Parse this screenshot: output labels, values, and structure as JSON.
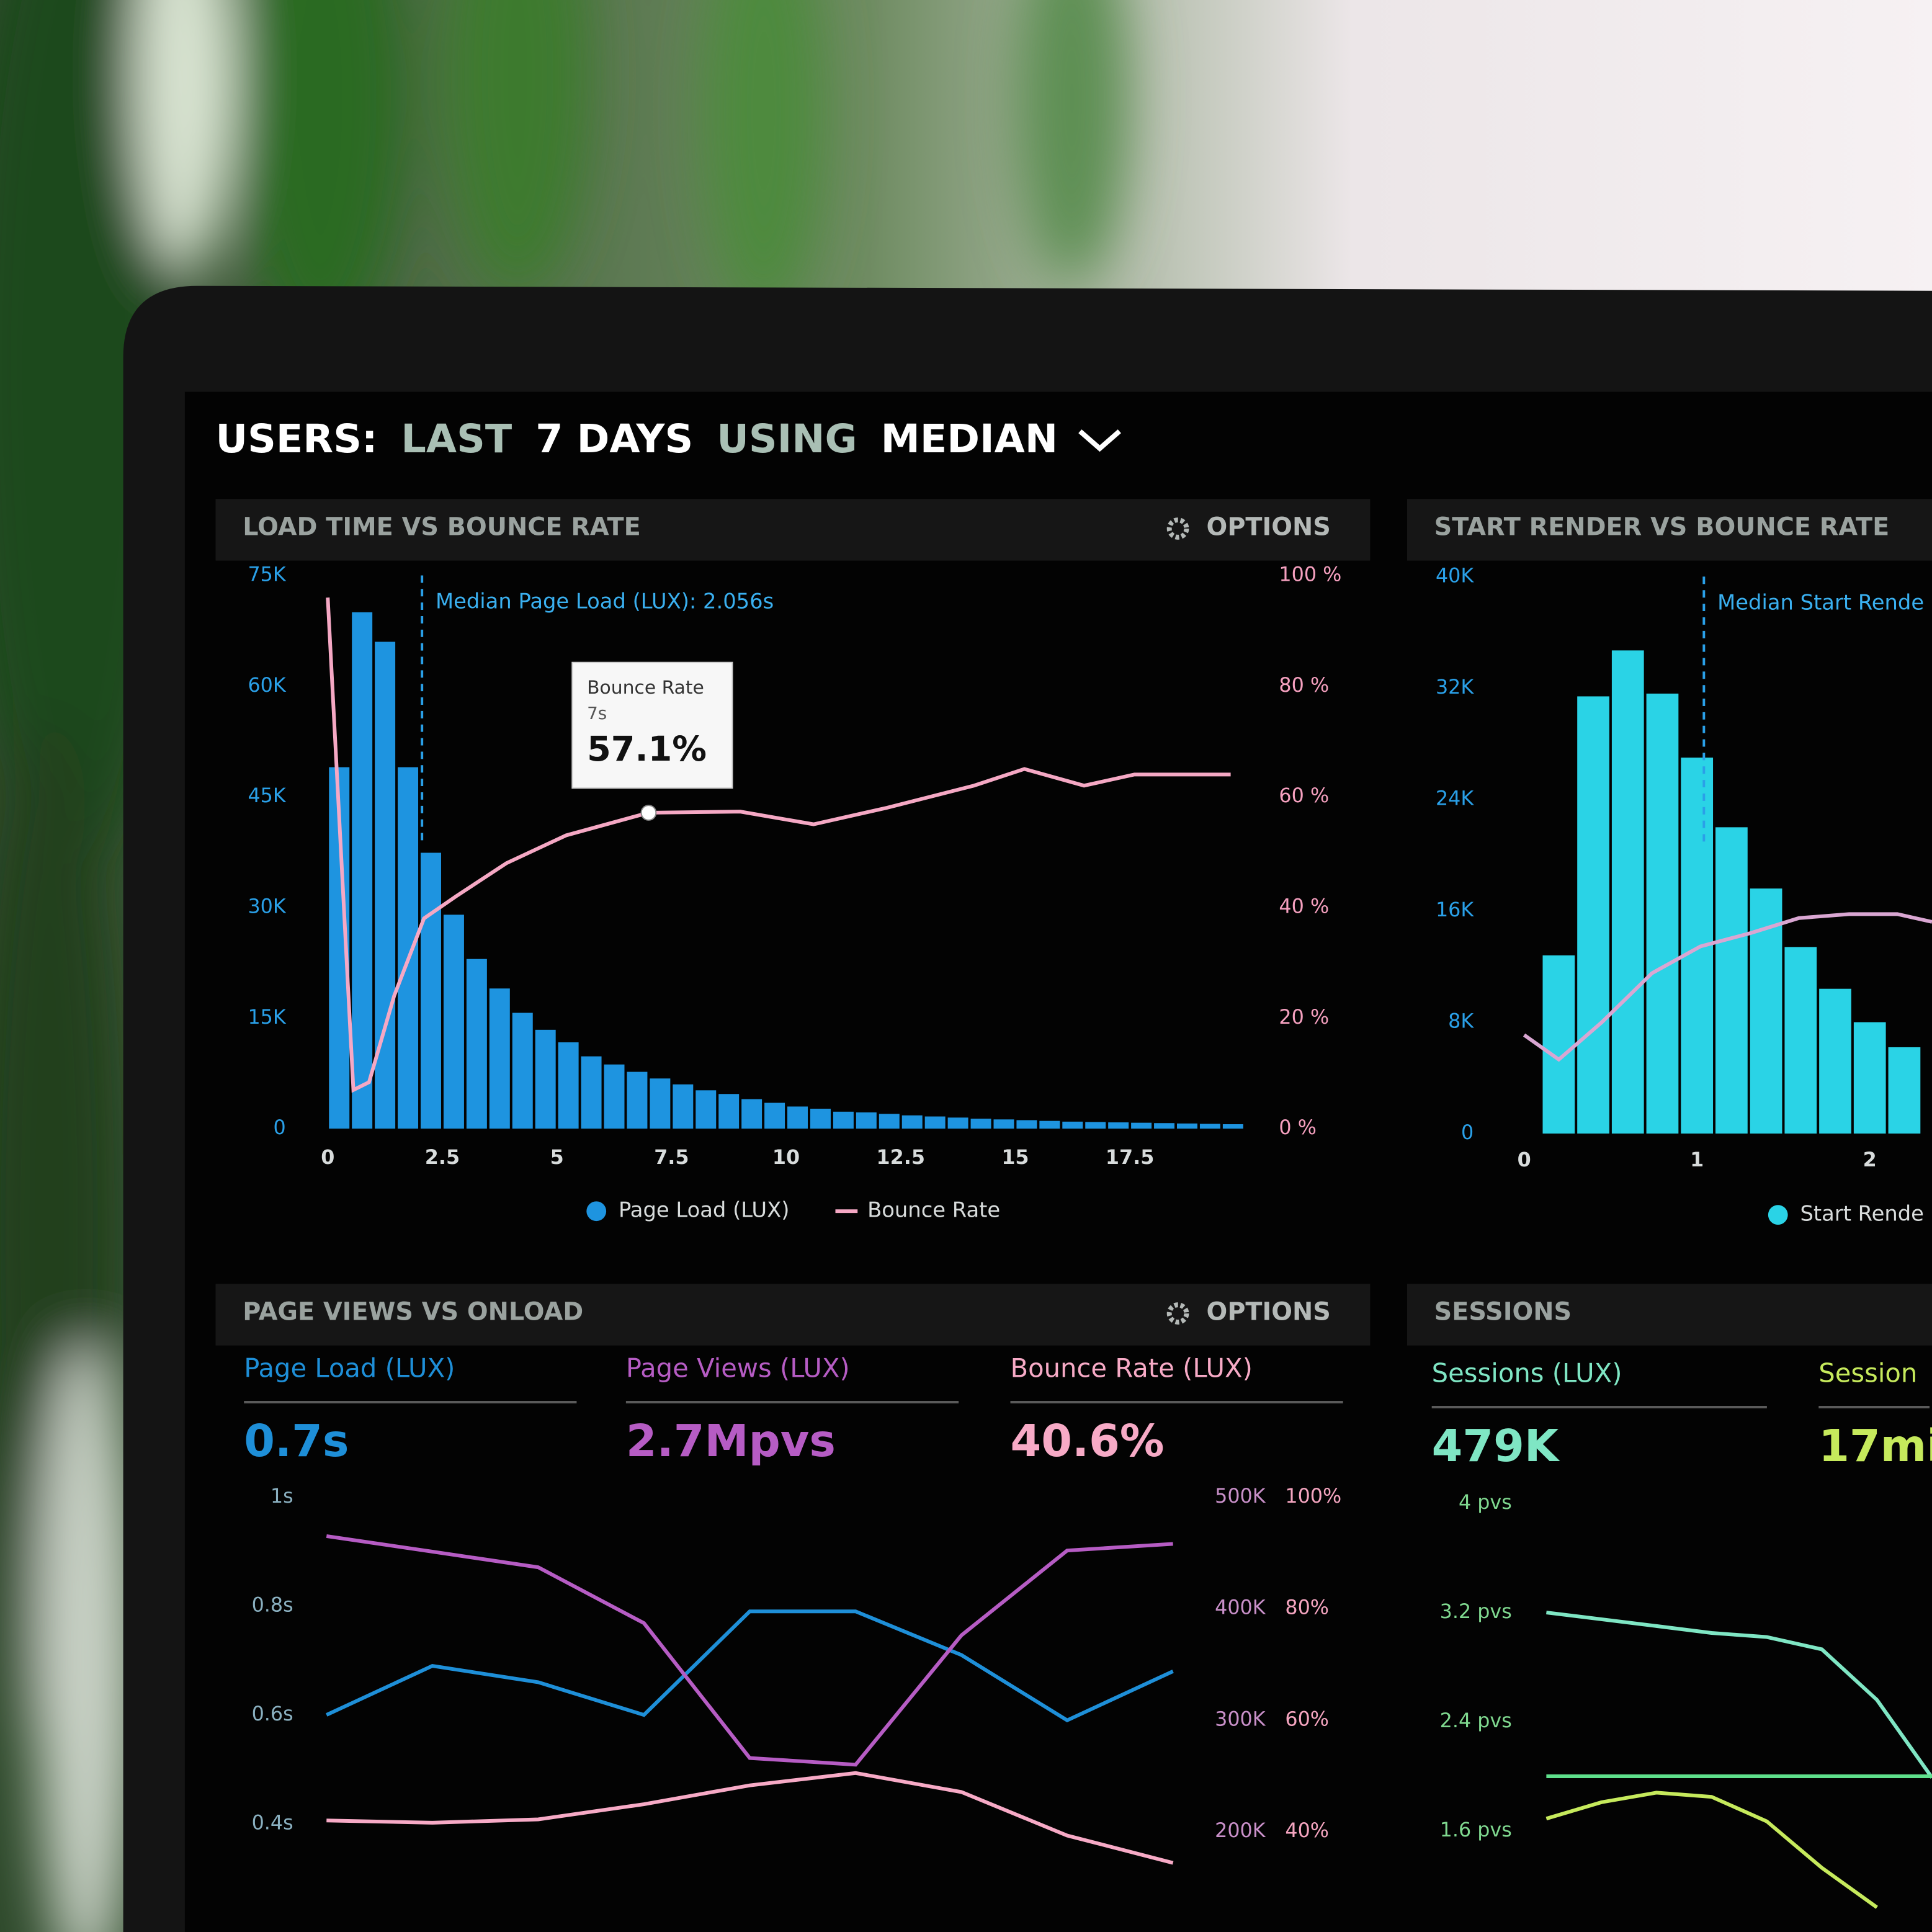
{
  "header": {
    "parts": [
      "USERS:",
      "LAST",
      "7 DAYS",
      "USING",
      "MEDIAN"
    ]
  },
  "chart_data": [
    {
      "type": "histogram",
      "title": "LOAD TIME VS BOUNCE RATE",
      "options": "OPTIONS",
      "bins": [
        0,
        0.5,
        1,
        1.5,
        2,
        2.5,
        3,
        3.5,
        4,
        4.5,
        5,
        5.5,
        6,
        6.5,
        7,
        7.5,
        8,
        8.5,
        9,
        9.5,
        10,
        10.5,
        11,
        11.5,
        12,
        12.5,
        13,
        13.5,
        14,
        14.5,
        15,
        15.5,
        16,
        16.5,
        17,
        17.5,
        18,
        18.5,
        19,
        19.5,
        20
      ],
      "series": [
        {
          "name": "Page Load (LUX)",
          "color": "#1e94e0",
          "values": [
            49000,
            70000,
            66000,
            49000,
            37400,
            29000,
            23000,
            19000,
            15700,
            13400,
            11700,
            9800,
            8700,
            7700,
            6800,
            6000,
            5200,
            4700,
            4000,
            3500,
            3000,
            2700,
            2300,
            2200,
            2000,
            1800,
            1650,
            1500,
            1350,
            1250,
            1150,
            1050,
            950,
            900,
            850,
            800,
            750,
            700,
            650,
            600
          ]
        },
        {
          "name": "Bounce Rate",
          "color": "#f5a8c4",
          "axis": "y2",
          "x": [
            0,
            0.56,
            0.9,
            1.45,
            2.1,
            2.8,
            3.9,
            5.2,
            7,
            9,
            10.6,
            12.2,
            14.1,
            15.2,
            16.5,
            17.6,
            19.7
          ],
          "values": [
            96,
            7,
            8.4,
            24,
            38,
            42,
            48,
            53,
            57.1,
            57.3,
            55,
            58,
            62,
            65,
            62,
            64,
            64
          ]
        }
      ],
      "xlim": [
        0,
        20
      ],
      "xticks": [
        0,
        2.5,
        5,
        7.5,
        10,
        12.5,
        15,
        17.5
      ],
      "ylim": [
        0,
        75000
      ],
      "yticks": [
        {
          "value": 0,
          "label": "0"
        },
        {
          "value": 15000,
          "label": "15K"
        },
        {
          "value": 30000,
          "label": "30K"
        },
        {
          "value": 45000,
          "label": "45K"
        },
        {
          "value": 60000,
          "label": "60K"
        },
        {
          "value": 75000,
          "label": "75K"
        }
      ],
      "y2lim": [
        0,
        100
      ],
      "y2ticks": [
        {
          "value": 0,
          "label": "0 %"
        },
        {
          "value": 20,
          "label": "20 %"
        },
        {
          "value": 40,
          "label": "40 %"
        },
        {
          "value": 60,
          "label": "60 %"
        },
        {
          "value": 80,
          "label": "80 %"
        },
        {
          "value": 100,
          "label": "100 %"
        }
      ],
      "annotations": [
        {
          "text": "Median Page Load (LUX): 2.056s",
          "x": 2.056
        }
      ],
      "tooltip": {
        "title": "Bounce Rate",
        "subtitle": "7s",
        "value_label": "57.1%",
        "x": 7,
        "value": 57.1
      }
    },
    {
      "type": "histogram",
      "title": "START RENDER VS BOUNCE RATE",
      "bins": [
        0.1,
        0.3,
        0.5,
        0.7,
        0.9,
        1.1,
        1.3,
        1.5,
        1.7,
        1.9,
        2.1,
        2.3
      ],
      "series": [
        {
          "name": "Start Rende",
          "color": "#2ad3e6",
          "values": [
            12800,
            31400,
            34700,
            31600,
            27000,
            22000,
            17600,
            13400,
            10400,
            8000,
            6200
          ]
        },
        {
          "color": "#d9a6d2",
          "axis": "y2",
          "x": [
            0,
            0.2,
            0.45,
            0.74,
            1.02,
            1.31,
            1.59,
            1.88,
            2.16,
            2.36
          ],
          "values": [
            17.7,
            13.3,
            20,
            28.8,
            33.6,
            36,
            38.7,
            39.4,
            39.4,
            38
          ]
        }
      ],
      "xlim": [
        0,
        2.36
      ],
      "xticks": [
        0,
        1,
        2
      ],
      "ylim": [
        0,
        40000
      ],
      "yticks": [
        {
          "value": 0,
          "label": "0"
        },
        {
          "value": 8000,
          "label": "8K"
        },
        {
          "value": 16000,
          "label": "16K"
        },
        {
          "value": 24000,
          "label": "24K"
        },
        {
          "value": 32000,
          "label": "32K"
        },
        {
          "value": 40000,
          "label": "40K"
        }
      ],
      "y2lim": [
        0,
        100
      ],
      "annotations": [
        {
          "text": "Median Start Rende",
          "x": 1.04
        }
      ]
    },
    {
      "type": "line",
      "title": "PAGE VIEWS VS ONLOAD",
      "options": "OPTIONS",
      "categories": [
        null,
        null,
        null,
        null,
        null,
        null,
        null,
        null,
        null
      ],
      "series": [
        {
          "name": "Page Load (LUX)",
          "summary": "0.7s",
          "color": "#1e8fd8",
          "axis": "y",
          "values": [
            0.6,
            0.69,
            0.66,
            0.6,
            0.79,
            0.79,
            0.71,
            0.59,
            0.68
          ]
        },
        {
          "name": "Page Views (LUX)",
          "summary": "2.7Mpvs",
          "color": "#b65cc4",
          "axis": "y2",
          "values": [
            465000,
            451000,
            437000,
            387000,
            266000,
            260000,
            376000,
            452000,
            458000
          ]
        },
        {
          "name": "Bounce Rate (LUX)",
          "summary": "40.6%",
          "color": "#f7aac6",
          "axis": "y3",
          "values": [
            42,
            41.6,
            42.2,
            44.9,
            48.3,
            50.5,
            47.1,
            39.3,
            34.4
          ]
        }
      ],
      "ylim": [
        0.31,
        1
      ],
      "yticks": [
        {
          "value": 0.4,
          "label": "0.4s"
        },
        {
          "value": 0.6,
          "label": "0.6s"
        },
        {
          "value": 0.8,
          "label": "0.8s"
        },
        {
          "value": 1,
          "label": "1s"
        }
      ],
      "y2lim": [
        163000,
        500000
      ],
      "y2ticks": [
        {
          "value": 200000,
          "label": "200K"
        },
        {
          "value": 300000,
          "label": "300K"
        },
        {
          "value": 400000,
          "label": "400K"
        },
        {
          "value": 500000,
          "label": "500K"
        }
      ],
      "y3lim": [
        32.6,
        100
      ],
      "y3ticks": [
        {
          "value": 40,
          "label": "40%"
        },
        {
          "value": 60,
          "label": "60%"
        },
        {
          "value": 80,
          "label": "80%"
        },
        {
          "value": 100,
          "label": "100%"
        }
      ]
    },
    {
      "type": "line",
      "title": "SESSIONS",
      "categories": [
        null,
        null,
        null,
        null,
        null,
        null,
        null,
        null
      ],
      "series": [
        {
          "name": "Sessions (LUX)",
          "summary": "479K",
          "color": "#7fe6c4",
          "axis": "y",
          "values": [
            3.2,
            3.15,
            3.1,
            3.05,
            3.02,
            2.93,
            2.56,
            1.99
          ]
        },
        {
          "color": "#5fe08c",
          "axis": "y",
          "values": [
            2,
            2,
            2,
            2,
            2,
            2,
            2,
            2
          ]
        },
        {
          "name": "Session",
          "summary": "17mi",
          "color": "#c6ea5c",
          "axis": "y",
          "values": [
            1.69,
            1.81,
            1.88,
            1.85,
            1.67,
            1.33,
            1.04,
            null
          ]
        }
      ],
      "ylim": [
        0.95,
        4
      ],
      "yticks": [
        {
          "value": 1.6,
          "label": "1.6 pvs"
        },
        {
          "value": 2.4,
          "label": "2.4 pvs"
        },
        {
          "value": 3.2,
          "label": "3.2 pvs"
        },
        {
          "value": 4,
          "label": "4 pvs"
        }
      ]
    }
  ]
}
